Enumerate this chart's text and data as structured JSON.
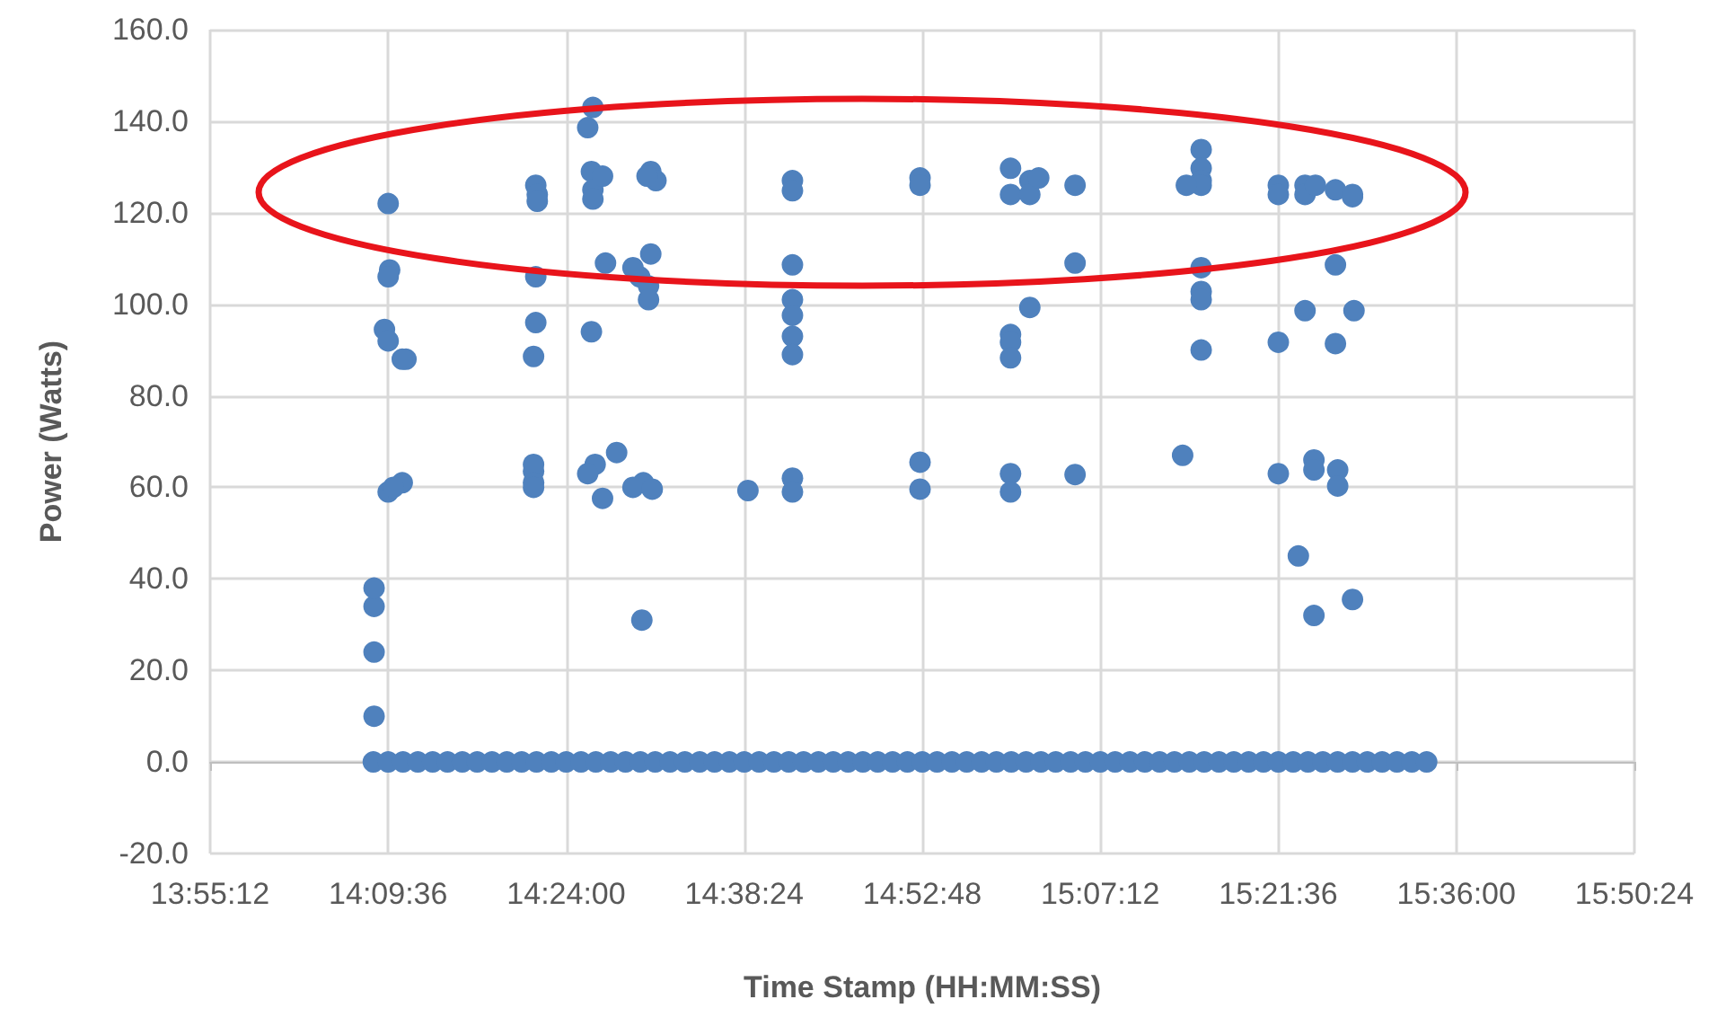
{
  "chart_data": {
    "type": "scatter",
    "xlabel": "Time Stamp (HH:MM:SS)",
    "ylabel": "Power (Watts)",
    "marker": "circle",
    "grid": true,
    "xlim": [
      13.92,
      15.84
    ],
    "xticks": [
      {
        "value": 13.92,
        "label": "13:55:12"
      },
      {
        "value": 14.16,
        "label": "14:09:36"
      },
      {
        "value": 14.4,
        "label": "14:24:00"
      },
      {
        "value": 14.64,
        "label": "14:38:24"
      },
      {
        "value": 14.88,
        "label": "14:52:48"
      },
      {
        "value": 15.12,
        "label": "15:07:12"
      },
      {
        "value": 15.36,
        "label": "15:21:36"
      },
      {
        "value": 15.6,
        "label": "15:36:00"
      },
      {
        "value": 15.84,
        "label": "15:50:24"
      }
    ],
    "ylim": [
      -20,
      160
    ],
    "yticks": [
      {
        "value": -20,
        "label": "-20.0"
      },
      {
        "value": 0,
        "label": "0.0"
      },
      {
        "value": 20,
        "label": "20.0"
      },
      {
        "value": 40,
        "label": "40.0"
      },
      {
        "value": 60,
        "label": "60.0"
      },
      {
        "value": 80,
        "label": "80.0"
      },
      {
        "value": 100,
        "label": "100.0"
      },
      {
        "value": 120,
        "label": "120.0"
      },
      {
        "value": 140,
        "label": "140.0"
      },
      {
        "value": 160,
        "label": "160.0"
      }
    ],
    "series": [
      {
        "color": "#4f81bd",
        "x": [
          14.141,
          14.141,
          14.141,
          14.141,
          14.16,
          14.162,
          14.16,
          14.155,
          14.16,
          14.184,
          14.179,
          14.16,
          14.179,
          14.167,
          14.359,
          14.361,
          14.361,
          14.359,
          14.359,
          14.356,
          14.356,
          14.356,
          14.356,
          14.356,
          14.436,
          14.429,
          14.434,
          14.436,
          14.436,
          14.449,
          14.453,
          14.434,
          14.439,
          14.429,
          14.449,
          14.468,
          14.514,
          14.521,
          14.509,
          14.499,
          14.49,
          14.514,
          14.511,
          14.511,
          14.504,
          14.49,
          14.516,
          14.502,
          14.645,
          14.705,
          14.705,
          14.705,
          14.705,
          14.705,
          14.705,
          14.705,
          14.705,
          14.705,
          14.877,
          14.877,
          14.877,
          14.877,
          14.999,
          14.999,
          14.999,
          14.999,
          14.999,
          14.999,
          14.999,
          15.025,
          15.025,
          15.025,
          15.037,
          15.086,
          15.086,
          15.086,
          15.256,
          15.256,
          15.256,
          15.256,
          15.236,
          15.256,
          15.256,
          15.256,
          15.256,
          15.231,
          15.36,
          15.36,
          15.36,
          15.36,
          15.396,
          15.396,
          15.41,
          15.437,
          15.46,
          15.46,
          15.437,
          15.396,
          15.462,
          15.437,
          15.408,
          15.408,
          15.44,
          15.44,
          15.387,
          15.408,
          15.46,
          14.14,
          14.16,
          14.18,
          14.2,
          14.22,
          14.24,
          14.26,
          14.28,
          14.3,
          14.32,
          14.34,
          14.36,
          14.38,
          14.4,
          14.42,
          14.44,
          14.46,
          14.48,
          14.5,
          14.52,
          14.54,
          14.56,
          14.58,
          14.6,
          14.62,
          14.64,
          14.66,
          14.68,
          14.7,
          14.72,
          14.74,
          14.76,
          14.78,
          14.8,
          14.82,
          14.84,
          14.86,
          14.88,
          14.9,
          14.92,
          14.94,
          14.96,
          14.98,
          15.0,
          15.02,
          15.04,
          15.06,
          15.08,
          15.1,
          15.12,
          15.14,
          15.16,
          15.18,
          15.2,
          15.22,
          15.24,
          15.26,
          15.28,
          15.3,
          15.32,
          15.34,
          15.36,
          15.38,
          15.4,
          15.42,
          15.44,
          15.46,
          15.48,
          15.5,
          15.52,
          15.54,
          15.56
        ],
        "values": [
          10,
          24,
          34,
          38,
          122,
          107.5,
          106,
          94.5,
          92,
          88,
          88,
          59,
          61,
          60,
          126,
          124,
          122.5,
          106,
          96,
          88.6,
          63.5,
          65,
          61,
          60,
          143,
          138.6,
          129,
          125,
          123,
          128,
          109,
          94,
          65,
          63,
          57.6,
          67.6,
          129,
          127,
          128,
          106,
          108,
          111,
          104,
          101,
          61,
          60,
          59.6,
          31,
          59.3,
          127,
          124.8,
          108.6,
          101,
          97.6,
          93,
          89,
          62,
          59,
          127.6,
          126,
          65.5,
          59.6,
          129.7,
          124,
          93.4,
          91.7,
          88.3,
          63,
          59,
          127,
          124,
          99.3,
          127.6,
          126,
          109,
          62.8,
          133.8,
          129.7,
          127,
          126,
          126,
          108,
          102.8,
          101,
          90,
          67,
          126,
          124,
          91.7,
          63,
          126,
          124,
          126,
          125,
          124,
          123.5,
          108.6,
          98.6,
          98.6,
          91.4,
          66,
          63.8,
          63.8,
          60.3,
          45,
          32,
          35.5,
          0,
          0,
          0,
          0,
          0,
          0,
          0,
          0,
          0,
          0,
          0,
          0,
          0,
          0,
          0,
          0,
          0,
          0,
          0,
          0,
          0,
          0,
          0,
          0,
          0,
          0,
          0,
          0,
          0,
          0,
          0,
          0,
          0,
          0,
          0,
          0,
          0,
          0,
          0,
          0,
          0,
          0,
          0,
          0,
          0,
          0,
          0,
          0,
          0,
          0,
          0,
          0,
          0,
          0,
          0,
          0,
          0,
          0,
          0,
          0,
          0,
          0,
          0,
          0,
          0,
          0,
          0,
          0,
          0,
          0,
          0,
          0
        ]
      }
    ]
  }
}
